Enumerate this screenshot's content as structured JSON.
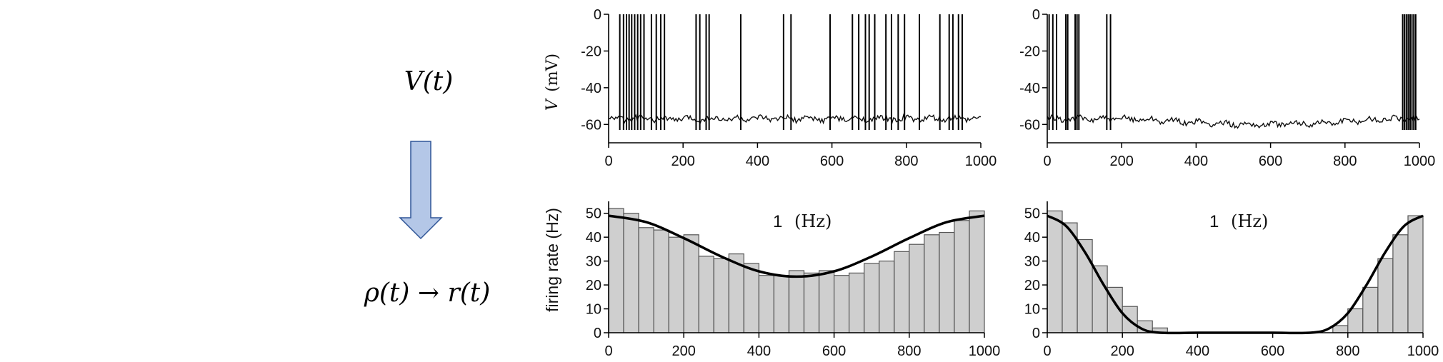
{
  "labels": {
    "voltage": "V(t)",
    "transform": "ρ(t) → r(t)"
  },
  "colors": {
    "arrow_fill": "#b4c7e7",
    "arrow_stroke": "#2f5597",
    "bin_fill": "#cfcfcf"
  },
  "chart_data": [
    {
      "id": "voltage-left",
      "type": "line",
      "ylabel_symbol": "V",
      "ylabel_unit": "(mV)",
      "xlim": [
        0,
        1000
      ],
      "ylim": [
        -70,
        0
      ],
      "xticks": [
        "0",
        "200",
        "400",
        "600",
        "800",
        "1000"
      ],
      "yticks": [
        "0",
        "-20",
        "-40",
        "-60"
      ],
      "baseline_mV": -57,
      "spike_peak_mV": 0,
      "spike_times": [
        30,
        40,
        48,
        55,
        62,
        70,
        78,
        86,
        95,
        115,
        128,
        140,
        150,
        235,
        245,
        262,
        270,
        355,
        470,
        490,
        595,
        655,
        672,
        690,
        700,
        715,
        745,
        760,
        778,
        795,
        835,
        890,
        915,
        925,
        940,
        950
      ]
    },
    {
      "id": "voltage-right",
      "type": "line",
      "xlim": [
        0,
        1000
      ],
      "ylim": [
        -70,
        0
      ],
      "xticks": [
        "0",
        "200",
        "400",
        "600",
        "800",
        "1000"
      ],
      "yticks": [
        "0",
        "-20",
        "-40",
        "-60"
      ],
      "baseline_mV": -57,
      "spike_peak_mV": 0,
      "spike_times": [
        5,
        15,
        25,
        50,
        55,
        75,
        80,
        85,
        160,
        170,
        955,
        960,
        965,
        970,
        975,
        980,
        985,
        990
      ]
    },
    {
      "id": "rate-left",
      "type": "bar",
      "ylabel": "firing rate  (Hz)",
      "annotation": "1",
      "annotation_unit": "(Hz)",
      "xlim": [
        0,
        1000
      ],
      "ylim": [
        0,
        55
      ],
      "xticks": [
        "0",
        "200",
        "400",
        "600",
        "800",
        "1000"
      ],
      "yticks": [
        "0",
        "10",
        "20",
        "30",
        "40",
        "50"
      ],
      "bin_width": 40,
      "bin_starts": [
        0,
        40,
        80,
        120,
        160,
        200,
        240,
        280,
        320,
        360,
        400,
        440,
        480,
        520,
        560,
        600,
        640,
        680,
        720,
        760,
        800,
        840,
        880,
        920,
        960
      ],
      "values": [
        52,
        50,
        44,
        43,
        40,
        41,
        32,
        31,
        33,
        29,
        24,
        24,
        26,
        25,
        26,
        24,
        25,
        29,
        30,
        34,
        37,
        41,
        42,
        47,
        51
      ],
      "fit": {
        "x": [
          0,
          100,
          200,
          300,
          400,
          500,
          600,
          700,
          800,
          900,
          1000
        ],
        "y": [
          49,
          46.3,
          39.6,
          31.9,
          25.7,
          23.5,
          25.7,
          31.9,
          39.6,
          46.3,
          49
        ]
      }
    },
    {
      "id": "rate-right",
      "type": "bar",
      "annotation": "1",
      "annotation_unit": "(Hz)",
      "xlim": [
        0,
        1000
      ],
      "ylim": [
        0,
        55
      ],
      "xticks": [
        "0",
        "200",
        "400",
        "600",
        "800",
        "1000"
      ],
      "yticks": [
        "0",
        "10",
        "20",
        "30",
        "40",
        "50"
      ],
      "bin_width": 40,
      "bin_starts": [
        0,
        40,
        80,
        120,
        160,
        200,
        240,
        280,
        320,
        360,
        400,
        440,
        480,
        520,
        560,
        600,
        640,
        680,
        720,
        760,
        800,
        840,
        880,
        920,
        960
      ],
      "values": [
        51,
        46,
        39,
        28,
        19,
        11,
        5,
        2,
        0,
        0,
        0,
        0,
        0,
        0,
        0,
        0,
        0,
        0,
        0,
        3,
        10,
        19,
        31,
        41,
        49
      ],
      "fit": {
        "x": [
          0,
          50,
          100,
          150,
          200,
          250,
          300,
          400,
          500,
          600,
          700,
          750,
          800,
          850,
          900,
          950,
          1000
        ],
        "y": [
          49,
          44.7,
          33.8,
          20.1,
          8.2,
          1.8,
          0,
          0,
          0,
          0,
          0,
          1.8,
          8.2,
          20.1,
          33.8,
          44.7,
          49
        ]
      }
    }
  ]
}
